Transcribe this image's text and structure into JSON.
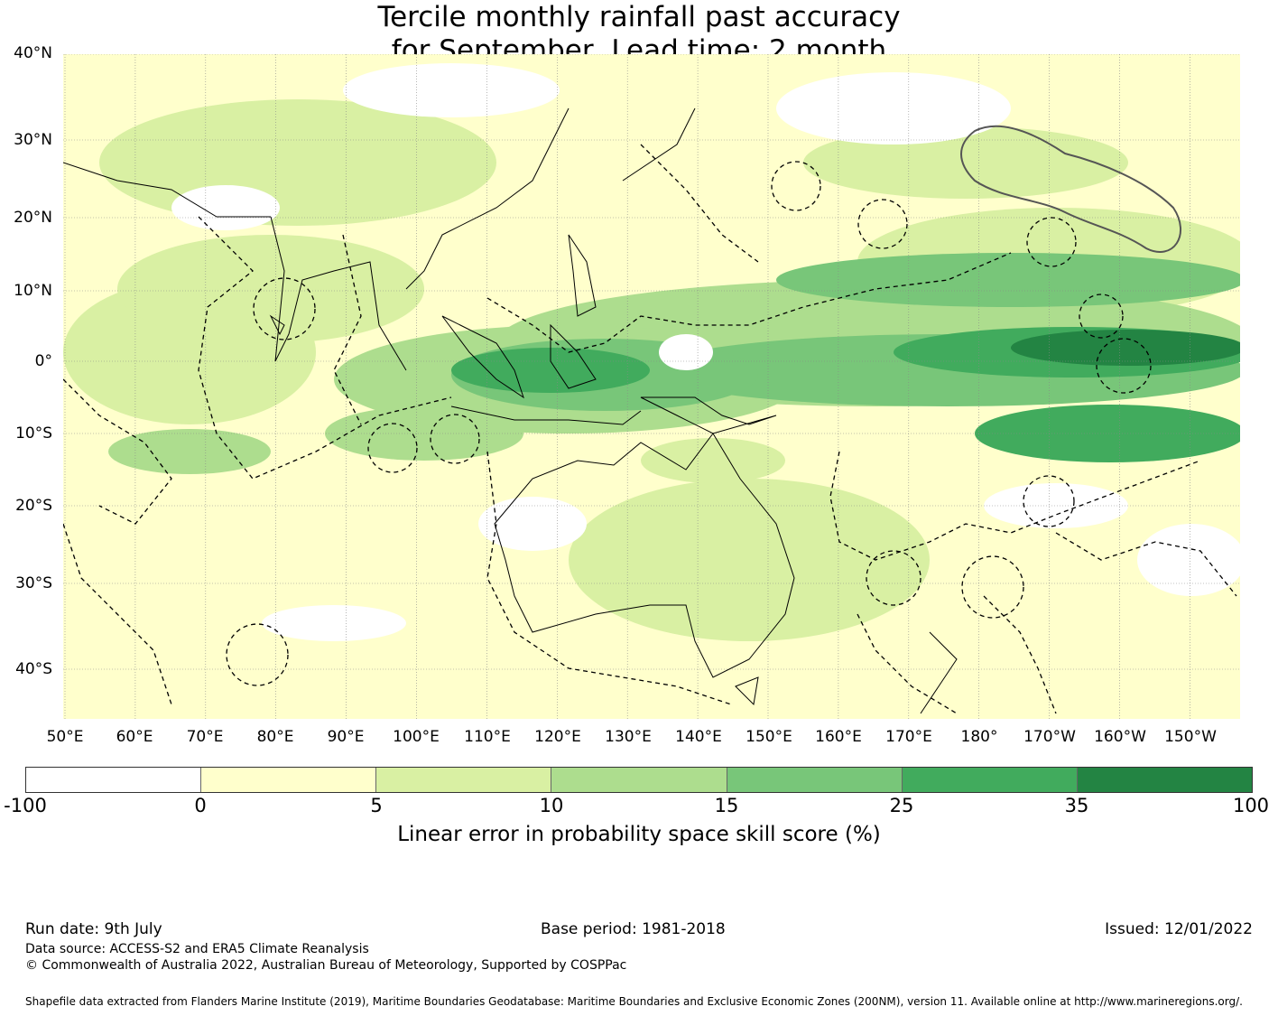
{
  "title": {
    "line1": "Tercile monthly rainfall past accuracy",
    "line2": "for September, Lead time: 2 month"
  },
  "axes": {
    "lat_labels": [
      "40°N",
      "30°N",
      "20°N",
      "10°N",
      "0°",
      "10°S",
      "20°S",
      "30°S",
      "40°S"
    ],
    "lon_labels": [
      "50°E",
      "60°E",
      "70°E",
      "80°E",
      "90°E",
      "100°E",
      "110°E",
      "120°E",
      "130°E",
      "140°E",
      "150°E",
      "160°E",
      "170°E",
      "180°",
      "170°W",
      "160°W",
      "150°W"
    ]
  },
  "colorbar": {
    "colors": [
      "#ffffff",
      "#ffffcc",
      "#d9f0a3",
      "#addd8e",
      "#78c679",
      "#41ab5d",
      "#238443"
    ],
    "ticks": [
      "-100",
      "0",
      "5",
      "10",
      "15",
      "25",
      "35",
      "100"
    ],
    "label": "Linear error in probability space skill score (%)"
  },
  "footer": {
    "run_date": "Run date: 9th July",
    "base_period": "Base period: 1981-2018",
    "issued": "Issued: 12/01/2022",
    "data_source": "Data source: ACCESS-S2 and ERA5 Climate Reanalysis",
    "copyright": "© Commonwealth of Australia 2022, Australian Bureau of Meteorology, Supported by COSPPac",
    "shapefile": "Shapefile data extracted from Flanders Marine Institute (2019), Maritime Boundaries Geodatabase: Maritime Boundaries and Exclusive Economic Zones (200NM), version 11. Available online at http://www.marineregions.org/."
  }
}
